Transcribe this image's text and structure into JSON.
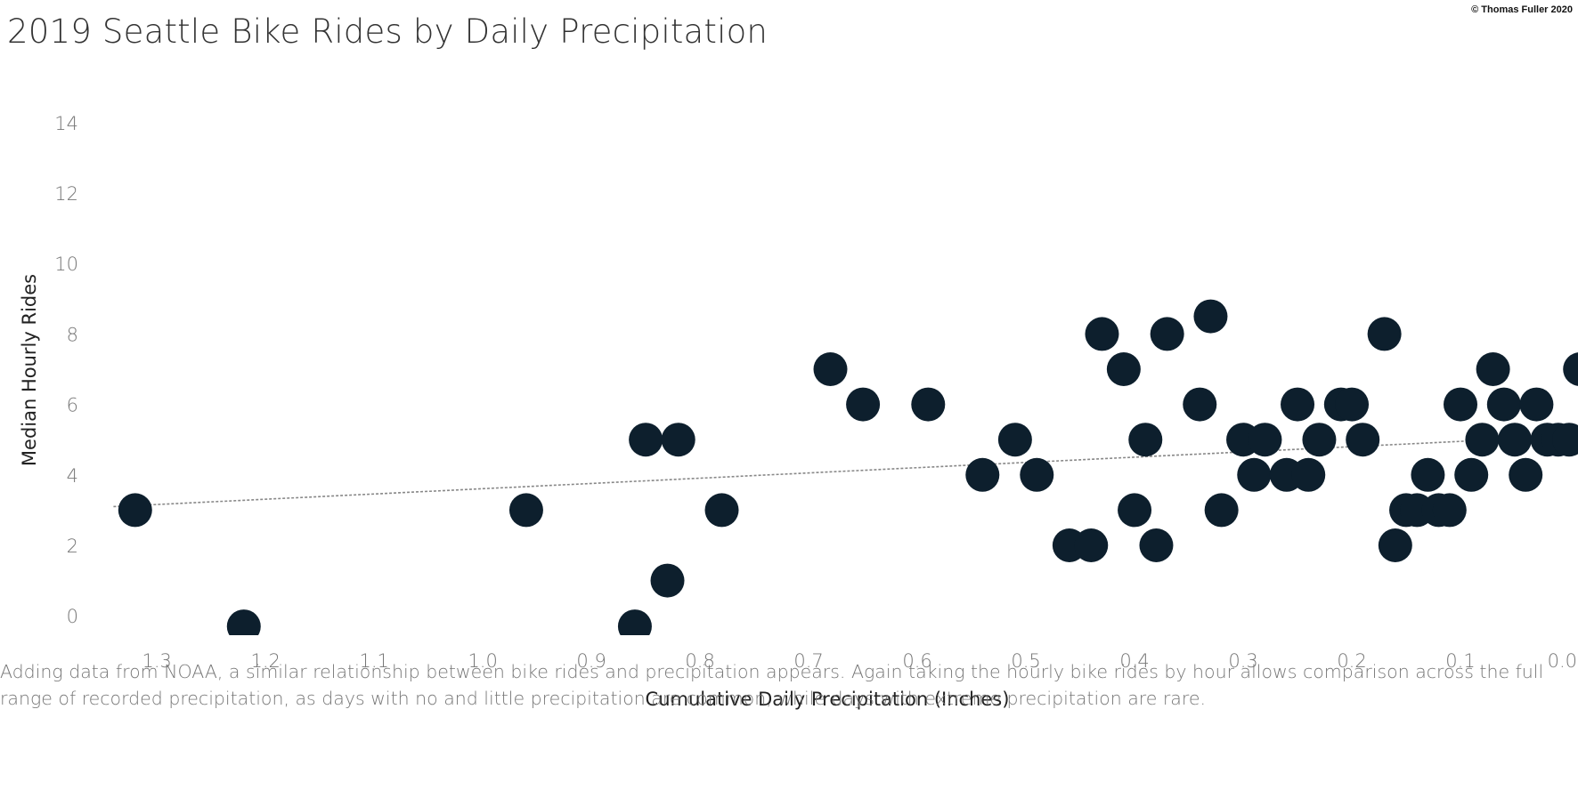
{
  "page": {
    "title": "2019 Seattle Bike Rides by Daily Precipitation",
    "copyright": "© Thomas Fuller 2020",
    "caption": "Adding data from NOAA, a similar relationship between bike rides and precipitation appears. Again taking the hourly bike rides by hour allows comparison across the full range of recorded precipitation, as days with no and little precipitation are common, while days with extreme precipitation are rare."
  },
  "chart_data": {
    "type": "scatter",
    "title": "2019 Seattle Bike Rides by Daily Precipitation",
    "xlabel": "Cumulative Daily Precipitation (Inches)",
    "ylabel": "Median Hourly Rides",
    "x_reversed": true,
    "xlim": [
      0.0,
      1.36
    ],
    "ylim": [
      -0.5,
      14.5
    ],
    "x_ticks": [
      {
        "value": 1.3,
        "label": "1.3"
      },
      {
        "value": 1.2,
        "label": "1.2"
      },
      {
        "value": 1.1,
        "label": "1.1"
      },
      {
        "value": 1.0,
        "label": "1.0"
      },
      {
        "value": 0.9,
        "label": "0.9"
      },
      {
        "value": 0.8,
        "label": "0.8"
      },
      {
        "value": 0.7,
        "label": "0.7"
      },
      {
        "value": 0.6,
        "label": "0.6"
      },
      {
        "value": 0.5,
        "label": "0.5"
      },
      {
        "value": 0.4,
        "label": "0.4"
      },
      {
        "value": 0.3,
        "label": "0.3"
      },
      {
        "value": 0.2,
        "label": "0.2"
      },
      {
        "value": 0.1,
        "label": "0.1"
      },
      {
        "value": 0.0,
        "label": "0.0"
      }
    ],
    "y_ticks": [
      {
        "value": 0,
        "label": "0"
      },
      {
        "value": 2,
        "label": "2"
      },
      {
        "value": 4,
        "label": "4"
      },
      {
        "value": 6,
        "label": "6"
      },
      {
        "value": 8,
        "label": "8"
      },
      {
        "value": 10,
        "label": "10"
      },
      {
        "value": 12,
        "label": "12"
      },
      {
        "value": 14,
        "label": "14"
      }
    ],
    "grid": false,
    "marker_color": "#0d1f2d",
    "trend_color": "#888888",
    "trend_line": {
      "x": [
        1.34,
        0.0
      ],
      "y": [
        3.1,
        5.1
      ]
    },
    "points": [
      {
        "x": 1.32,
        "y": 3
      },
      {
        "x": 1.22,
        "y": -0.3
      },
      {
        "x": 0.96,
        "y": 3
      },
      {
        "x": 0.86,
        "y": -0.3
      },
      {
        "x": 0.85,
        "y": 5
      },
      {
        "x": 0.83,
        "y": 1
      },
      {
        "x": 0.82,
        "y": 5
      },
      {
        "x": 0.78,
        "y": 3
      },
      {
        "x": 0.68,
        "y": 7
      },
      {
        "x": 0.65,
        "y": 6
      },
      {
        "x": 0.59,
        "y": 6
      },
      {
        "x": 0.54,
        "y": 4
      },
      {
        "x": 0.51,
        "y": 5
      },
      {
        "x": 0.49,
        "y": 4
      },
      {
        "x": 0.46,
        "y": 2
      },
      {
        "x": 0.44,
        "y": 2
      },
      {
        "x": 0.43,
        "y": 8
      },
      {
        "x": 0.41,
        "y": 7
      },
      {
        "x": 0.4,
        "y": 3
      },
      {
        "x": 0.39,
        "y": 5
      },
      {
        "x": 0.38,
        "y": 2
      },
      {
        "x": 0.37,
        "y": 8
      },
      {
        "x": 0.34,
        "y": 6
      },
      {
        "x": 0.33,
        "y": 8.5
      },
      {
        "x": 0.32,
        "y": 3
      },
      {
        "x": 0.3,
        "y": 5
      },
      {
        "x": 0.29,
        "y": 4
      },
      {
        "x": 0.28,
        "y": 5
      },
      {
        "x": 0.26,
        "y": 4
      },
      {
        "x": 0.25,
        "y": 6
      },
      {
        "x": 0.24,
        "y": 4
      },
      {
        "x": 0.23,
        "y": 5
      },
      {
        "x": 0.21,
        "y": 6
      },
      {
        "x": 0.2,
        "y": 6
      },
      {
        "x": 0.19,
        "y": 5
      },
      {
        "x": 0.17,
        "y": 8
      },
      {
        "x": 0.16,
        "y": 2
      },
      {
        "x": 0.15,
        "y": 3
      },
      {
        "x": 0.14,
        "y": 3
      },
      {
        "x": 0.13,
        "y": 4
      },
      {
        "x": 0.12,
        "y": 3
      },
      {
        "x": 0.11,
        "y": 3
      },
      {
        "x": 0.1,
        "y": 6
      },
      {
        "x": 0.09,
        "y": 4
      },
      {
        "x": 0.08,
        "y": 5
      },
      {
        "x": 0.07,
        "y": 7
      },
      {
        "x": 0.06,
        "y": 6
      },
      {
        "x": 0.05,
        "y": 5
      },
      {
        "x": 0.04,
        "y": 4
      },
      {
        "x": 0.03,
        "y": 6
      },
      {
        "x": 0.02,
        "y": 5
      },
      {
        "x": 0.01,
        "y": 5
      },
      {
        "x": 0.0,
        "y": 5
      },
      {
        "x": -0.01,
        "y": 7
      }
    ]
  }
}
